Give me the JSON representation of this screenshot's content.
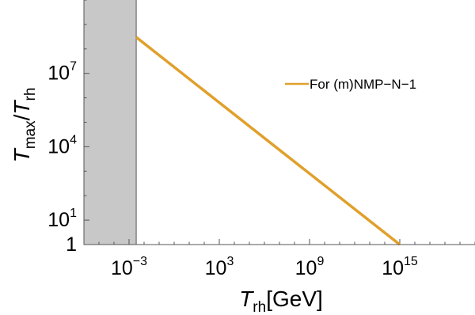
{
  "chart_data": {
    "type": "line",
    "xscale": "log",
    "yscale": "log",
    "xlim": [
      1e-06,
      1e+20
    ],
    "ylim": [
      1,
      10000000000.0
    ],
    "xticks": [
      {
        "value": 0.001,
        "base": "10",
        "exp": "−3"
      },
      {
        "value": 1000,
        "base": "10",
        "exp": "3"
      },
      {
        "value": 1000000000.0,
        "base": "10",
        "exp": "9"
      },
      {
        "value": 1000000000000000.0,
        "base": "10",
        "exp": "15"
      }
    ],
    "yticks": [
      {
        "value": 1,
        "base": "1",
        "exp": ""
      },
      {
        "value": 10,
        "base": "10",
        "exp": "1"
      },
      {
        "value": 10000,
        "base": "10",
        "exp": "4"
      },
      {
        "value": 10000000.0,
        "base": "10",
        "exp": "7"
      }
    ],
    "xlabel": {
      "main": "T",
      "sub": "rh",
      "suffix": "[GeV]"
    },
    "ylabel": {
      "num": "T",
      "num_sub": "max",
      "slash": "/",
      "den": "T",
      "den_sub": "rh"
    },
    "shaded_region": {
      "x_min": 1e-06,
      "x_max": 0.003,
      "color": "#c8c8c8"
    },
    "series": [
      {
        "name": "For (m)NMP−N−1",
        "color": "#e0a02b",
        "points": [
          [
            0.003,
            300000000.0
          ],
          [
            1000000000000000.0,
            1
          ]
        ]
      }
    ],
    "legend_position": "right"
  }
}
